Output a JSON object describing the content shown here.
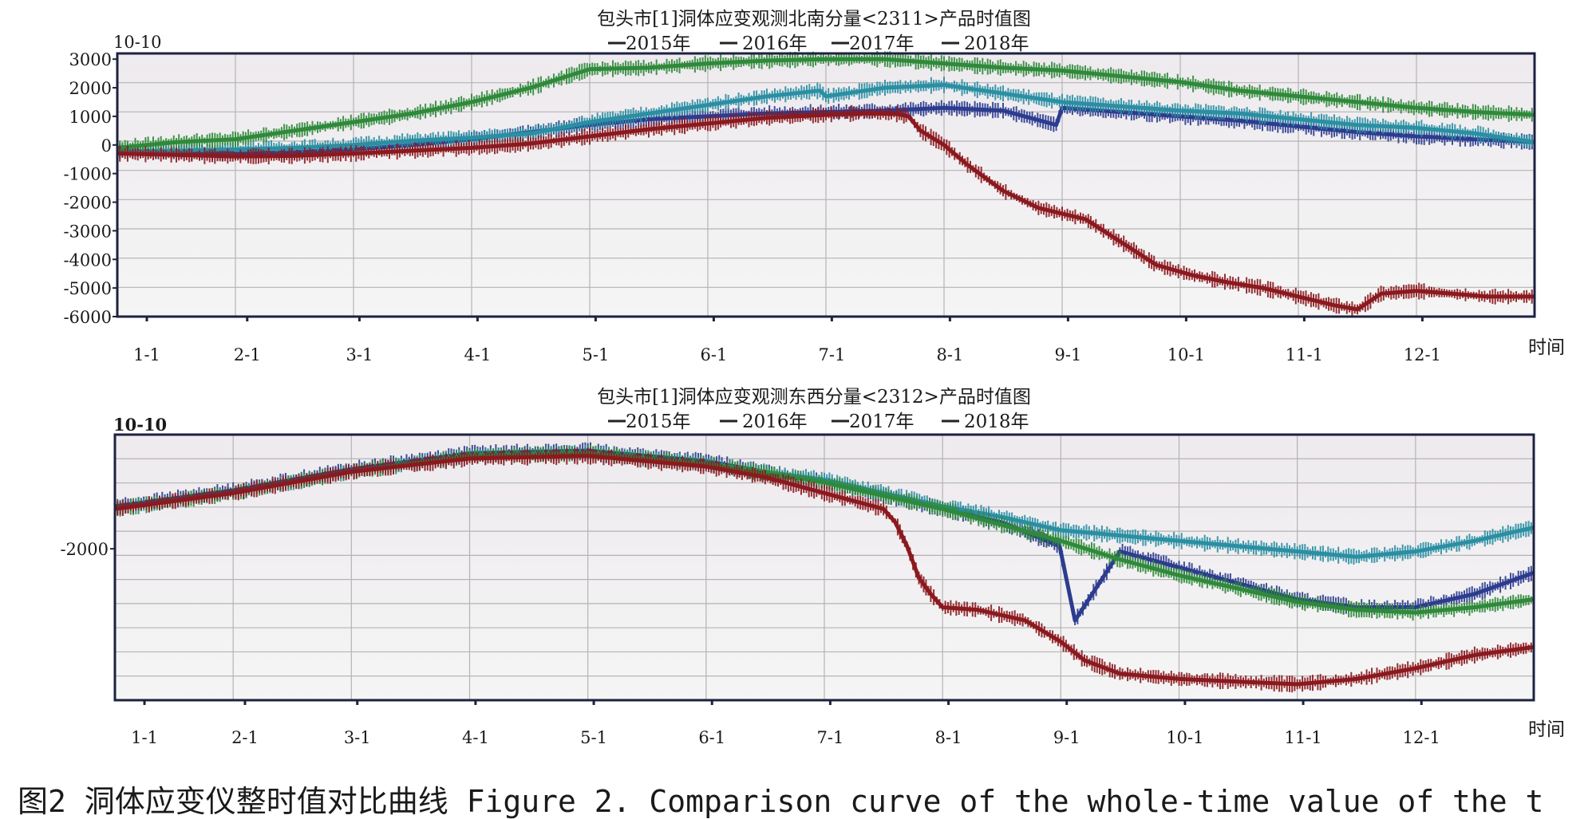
{
  "caption": "图2 洞体应变仪整时值对比曲线 Figure 2. Comparison curve of the whole-time value of the t",
  "colors": {
    "series_2015": "#8b1a1f",
    "series_2016": "#2c3c8f",
    "series_2017": "#2f8a3a",
    "series_2018": "#2a8fa3",
    "plot_bg_top": "#eeeaee",
    "plot_bg_bottom": "#f5f5f5",
    "grid": "#b4b4b4",
    "frame": "#1c2240"
  },
  "chart_data": [
    {
      "type": "line",
      "title": "包头市[1]洞体应变观测北南分量<2311>产品时值图",
      "unit_label": "10-10",
      "xlabel": "时间",
      "x_ticks": [
        "1-1",
        "2-1",
        "3-1",
        "4-1",
        "5-1",
        "6-1",
        "7-1",
        "8-1",
        "9-1",
        "10-1",
        "11-1",
        "12-1"
      ],
      "xlim": [
        0,
        12
      ],
      "ylim": [
        -6000,
        3200
      ],
      "y_ticks": [
        3000,
        2000,
        1000,
        0,
        -1000,
        -2000,
        -3000,
        -4000,
        -5000,
        -6000
      ],
      "grid": true,
      "legend_position": "top-center",
      "legend_entries": [
        "2015年",
        "2016年",
        "2017年",
        "2018年"
      ],
      "series": [
        {
          "name": "2015年",
          "key": "series_2015",
          "x": [
            0,
            0.5,
            1,
            1.5,
            2,
            2.5,
            3,
            3.5,
            4,
            4.5,
            5,
            5.5,
            6,
            6.3,
            6.6,
            6.7,
            6.8,
            7.0,
            7.2,
            7.5,
            7.8,
            8.0,
            8.2,
            8.5,
            8.8,
            9.1,
            9.4,
            9.7,
            10.0,
            10.3,
            10.5,
            10.7,
            11.0,
            11.3,
            11.6,
            12.0
          ],
          "y": [
            -300,
            -350,
            -400,
            -380,
            -300,
            -200,
            -100,
            50,
            300,
            550,
            750,
            950,
            1050,
            1100,
            1080,
            1000,
            500,
            0,
            -700,
            -1600,
            -2200,
            -2400,
            -2600,
            -3400,
            -4200,
            -4550,
            -4800,
            -5000,
            -5300,
            -5600,
            -5750,
            -5200,
            -5100,
            -5200,
            -5300,
            -5300
          ]
        },
        {
          "name": "2016年",
          "key": "series_2016",
          "x": [
            0,
            0.5,
            1,
            1.5,
            2,
            2.5,
            3,
            3.5,
            4,
            4.5,
            5,
            5.5,
            6,
            6.5,
            7.0,
            7.5,
            7.95,
            8.0,
            8.5,
            9.0,
            9.5,
            10.0,
            10.5,
            11.0,
            11.5,
            12.0
          ],
          "y": [
            -200,
            -250,
            -300,
            -250,
            -150,
            0,
            200,
            450,
            700,
            900,
            1000,
            1100,
            1150,
            1200,
            1300,
            1200,
            700,
            1300,
            1150,
            1000,
            850,
            650,
            450,
            300,
            200,
            100
          ]
        },
        {
          "name": "2017年",
          "key": "series_2017",
          "x": [
            0,
            0.5,
            1,
            1.5,
            2,
            2.5,
            3,
            3.5,
            4,
            4.5,
            5,
            5.5,
            6,
            6.5,
            7.0,
            7.5,
            8.0,
            8.5,
            9.0,
            9.5,
            10.0,
            10.5,
            11.0,
            11.5,
            12.0
          ],
          "y": [
            -100,
            100,
            200,
            500,
            800,
            1100,
            1500,
            2000,
            2650,
            2700,
            2850,
            2950,
            3000,
            3000,
            2850,
            2700,
            2600,
            2400,
            2200,
            1900,
            1700,
            1500,
            1300,
            1150,
            1050
          ]
        },
        {
          "name": "2018年",
          "key": "series_2018",
          "x": [
            0,
            0.5,
            1,
            1.5,
            2,
            2.5,
            3,
            3.5,
            4,
            4.5,
            5,
            5.5,
            5.95,
            6.0,
            6.5,
            7.0,
            7.5,
            8.0,
            8.5,
            9.0,
            9.5,
            10.0,
            10.5,
            11.0,
            11.5,
            12.0
          ],
          "y": [
            -200,
            -200,
            -150,
            -100,
            0,
            150,
            250,
            400,
            800,
            1100,
            1400,
            1700,
            1900,
            1700,
            2000,
            2100,
            1800,
            1500,
            1350,
            1200,
            1100,
            900,
            700,
            600,
            400,
            100
          ]
        }
      ]
    },
    {
      "type": "line",
      "title": "包头市[1]洞体应变观测东西分量<2312>产品时值图",
      "unit_label": "10-10",
      "xlabel": "时间",
      "x_ticks": [
        "1-1",
        "2-1",
        "3-1",
        "4-1",
        "5-1",
        "6-1",
        "7-1",
        "8-1",
        "9-1",
        "10-1",
        "11-1",
        "12-1"
      ],
      "xlim": [
        0,
        12
      ],
      "ylim": [
        0,
        100
      ],
      "y_ticks": [
        -2000
      ],
      "y_tick_positions": [
        57
      ],
      "grid": true,
      "legend_position": "top-center",
      "legend_entries": [
        "2015年",
        "2016年",
        "2017年",
        "2018年"
      ],
      "series": [
        {
          "name": "2015年",
          "key": "series_2015",
          "x": [
            0,
            1,
            2,
            3,
            4,
            5,
            5.5,
            6,
            6.5,
            6.6,
            6.7,
            6.8,
            6.9,
            7.0,
            7.3,
            7.7,
            8.0,
            8.2,
            8.5,
            9.0,
            9.5,
            10.0,
            10.5,
            11.0,
            11.5,
            12.0
          ],
          "y": [
            72,
            78,
            86,
            91,
            92,
            88,
            84,
            78,
            72,
            67,
            58,
            46,
            40,
            35,
            34,
            30,
            22,
            15,
            10,
            8,
            7,
            6,
            8,
            12,
            17,
            20
          ]
        },
        {
          "name": "2016年",
          "key": "series_2016",
          "x": [
            0,
            1,
            2,
            3,
            4,
            5,
            6,
            6.5,
            7.0,
            7.5,
            7.99,
            8.12,
            8.5,
            9.0,
            9.5,
            10.0,
            10.5,
            11.0,
            11.5,
            12.0
          ],
          "y": [
            73,
            79,
            87,
            93,
            94,
            90,
            82,
            77,
            72,
            67,
            58,
            30,
            56,
            50,
            44,
            38,
            35,
            35,
            40,
            48
          ]
        },
        {
          "name": "2017年",
          "key": "series_2017",
          "x": [
            0,
            1,
            2,
            3,
            4,
            5,
            6,
            6.5,
            7.0,
            7.5,
            8.0,
            8.5,
            9.0,
            9.5,
            10.0,
            10.5,
            11.0,
            11.5,
            12.0
          ],
          "y": [
            72,
            78,
            86,
            92,
            93,
            89,
            82,
            77,
            72,
            66,
            60,
            53,
            47,
            42,
            37,
            34,
            33,
            35,
            38
          ]
        },
        {
          "name": "2018年",
          "key": "series_2018",
          "x": [
            0,
            1,
            2,
            3,
            4,
            5,
            6,
            6.5,
            7.0,
            7.5,
            8.0,
            8.5,
            9.0,
            9.5,
            10.0,
            10.5,
            11.0,
            11.5,
            12.0
          ],
          "y": [
            72,
            78,
            86,
            92,
            93,
            89,
            83,
            78,
            73,
            69,
            64,
            62,
            60,
            58,
            56,
            54,
            56,
            60,
            65
          ]
        }
      ]
    }
  ]
}
